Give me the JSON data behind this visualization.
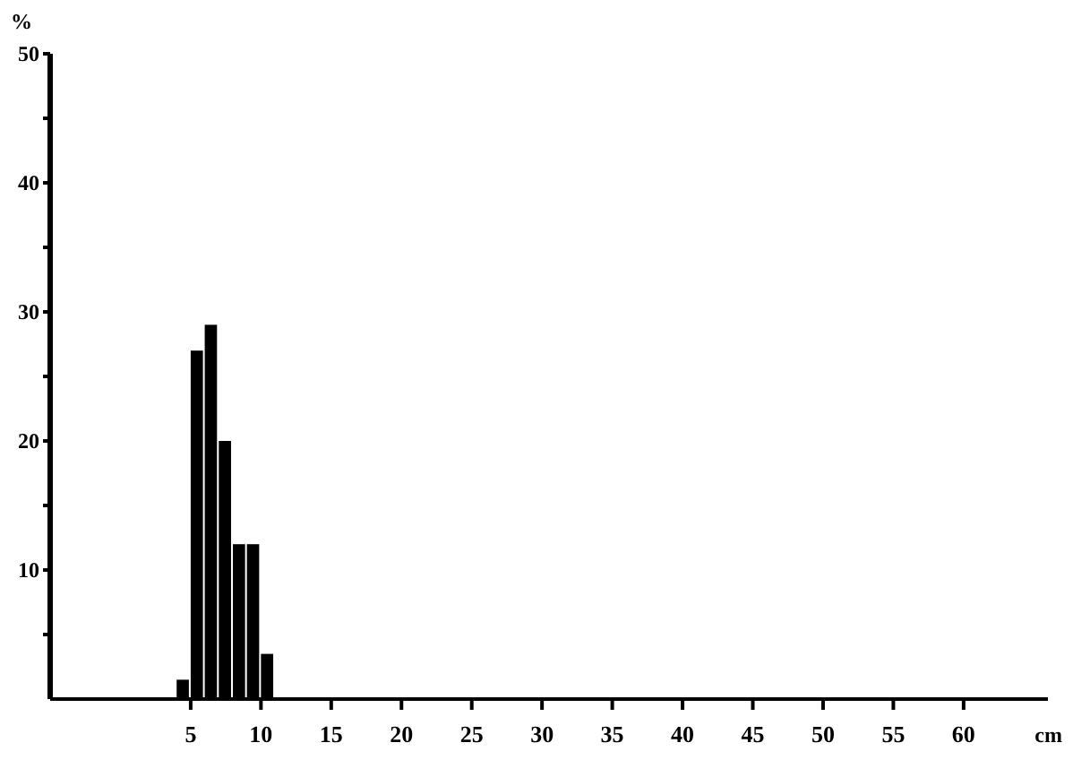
{
  "chart_data": {
    "type": "histogram",
    "ylabel": "%",
    "xlabel": "cm",
    "bins": [
      4,
      5,
      6,
      7,
      8,
      9,
      10,
      11
    ],
    "values": [
      1.5,
      27,
      29,
      20,
      12,
      12,
      3.5
    ],
    "color": "#000000",
    "xlim": [
      -5,
      66
    ],
    "ylim": [
      0,
      50
    ],
    "xticks": [
      5,
      10,
      15,
      20,
      25,
      30,
      35,
      40,
      45,
      50,
      55,
      60
    ],
    "yticks": [
      {
        "value": 5,
        "label": null
      },
      10,
      {
        "value": 15,
        "label": null
      },
      20,
      {
        "value": 25,
        "label": null
      },
      30,
      {
        "value": 35,
        "label": null
      },
      40,
      {
        "value": 45,
        "label": null
      },
      50
    ],
    "grid": false
  }
}
